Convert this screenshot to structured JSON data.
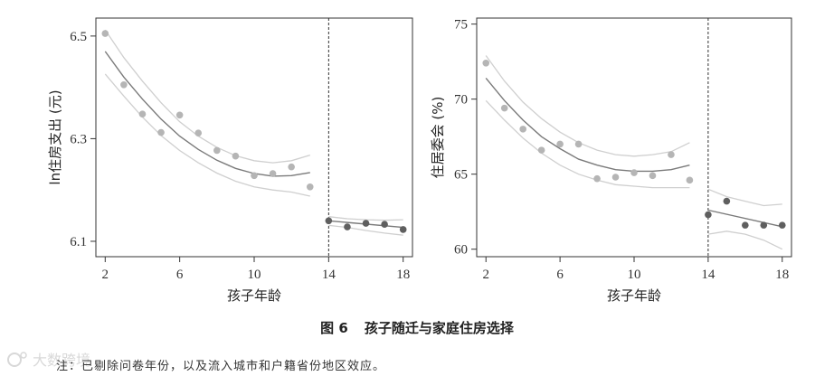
{
  "caption": {
    "number": "图 6",
    "title": "孩子随迁与家庭住房选择"
  },
  "note": "注：已剔除问卷年份，以及流入城市和户籍省份地区效应。",
  "watermark": {
    "text": "大数跨境"
  },
  "colors": {
    "pre_points": "#b5b5b5",
    "post_points": "#5f5f5f",
    "fit": "#7a7a7a",
    "ci": "#cfcfcf",
    "cutoff": "#333333"
  },
  "chart_data": [
    {
      "type": "scatter",
      "xlabel": "孩子年龄",
      "ylabel": "ln住房支出 (元)",
      "xlim": [
        1.5,
        18.5
      ],
      "ylim": [
        6.07,
        6.535
      ],
      "xticks": [
        2,
        6,
        10,
        14,
        18
      ],
      "yticks": [
        6.1,
        6.3,
        6.5
      ],
      "ytick_labels": [
        "6.1",
        "6.3",
        "6.5"
      ],
      "cutoff": 14,
      "pre": {
        "x": [
          2,
          3,
          4,
          5,
          6,
          7,
          8,
          9,
          10,
          11,
          12,
          13
        ],
        "y": [
          6.505,
          6.405,
          6.348,
          6.312,
          6.346,
          6.311,
          6.277,
          6.266,
          6.228,
          6.232,
          6.245,
          6.206
        ],
        "fit": {
          "x": [
            2,
            3,
            4,
            5,
            6,
            7,
            8,
            9,
            10,
            11,
            12,
            13
          ],
          "y": [
            6.47,
            6.42,
            6.377,
            6.338,
            6.305,
            6.279,
            6.258,
            6.242,
            6.232,
            6.227,
            6.228,
            6.234
          ]
        },
        "ci_upper": [
          6.512,
          6.458,
          6.412,
          6.37,
          6.333,
          6.305,
          6.283,
          6.267,
          6.257,
          6.253,
          6.257,
          6.268
        ],
        "ci_lower": [
          6.426,
          6.383,
          6.342,
          6.306,
          6.277,
          6.253,
          6.233,
          6.217,
          6.206,
          6.2,
          6.196,
          6.188
        ]
      },
      "post": {
        "x": [
          14,
          15,
          16,
          17,
          18
        ],
        "y": [
          6.14,
          6.128,
          6.135,
          6.133,
          6.123
        ],
        "fit": {
          "x": [
            14,
            18
          ],
          "y": [
            6.14,
            6.127
          ]
        },
        "ci_upper": [
          6.148,
          6.144,
          6.142,
          6.141,
          6.142
        ],
        "ci_lower": [
          6.131,
          6.127,
          6.121,
          6.116,
          6.112
        ]
      }
    },
    {
      "type": "scatter",
      "xlabel": "孩子年龄",
      "ylabel": "住居委会 (%)",
      "xlim": [
        1.5,
        18.5
      ],
      "ylim": [
        59.5,
        75.4
      ],
      "xticks": [
        2,
        6,
        10,
        14,
        18
      ],
      "yticks": [
        60,
        65,
        70,
        75
      ],
      "ytick_labels": [
        "60",
        "65",
        "70",
        "75"
      ],
      "cutoff": 14,
      "pre": {
        "x": [
          2,
          3,
          4,
          5,
          6,
          7,
          8,
          9,
          10,
          11,
          12,
          13
        ],
        "y": [
          72.4,
          69.4,
          68.0,
          66.6,
          67.0,
          67.0,
          64.7,
          64.8,
          65.1,
          64.9,
          66.3,
          64.6
        ],
        "fit": {
          "x": [
            2,
            3,
            4,
            5,
            6,
            7,
            8,
            9,
            10,
            11,
            12,
            13
          ],
          "y": [
            71.4,
            69.9,
            68.6,
            67.5,
            66.7,
            66.0,
            65.6,
            65.3,
            65.2,
            65.2,
            65.3,
            65.6
          ]
        },
        "ci_upper": [
          72.9,
          71.2,
          69.8,
          68.7,
          67.8,
          67.1,
          66.6,
          66.3,
          66.2,
          66.3,
          66.5,
          67.1
        ],
        "ci_lower": [
          69.9,
          68.6,
          67.4,
          66.4,
          65.6,
          65.0,
          64.6,
          64.3,
          64.2,
          64.1,
          64.1,
          64.1
        ]
      },
      "post": {
        "x": [
          14,
          15,
          16,
          17,
          18
        ],
        "y": [
          62.3,
          63.2,
          61.6,
          61.6,
          61.6
        ],
        "fit": {
          "x": [
            14,
            18
          ],
          "y": [
            62.6,
            61.5
          ]
        },
        "ci_upper": [
          64.0,
          63.5,
          63.2,
          62.9,
          63.0
        ],
        "ci_lower": [
          61.0,
          61.2,
          61.0,
          60.6,
          60.0
        ]
      }
    }
  ]
}
